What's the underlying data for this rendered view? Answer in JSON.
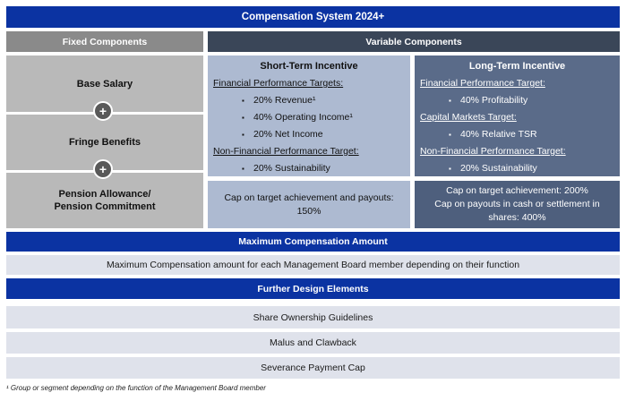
{
  "colors": {
    "brand_blue": "#0b33a2",
    "dark_navy_header": "#3a4658",
    "gray_header": "#8a8a8a",
    "gray_box": "#b9b9b9",
    "sti_light_blue": "#adbad1",
    "lti_slate_blue": "#5a6b89",
    "lti_cap_blue": "#4e5f7d",
    "light_row": "#dfe2eb",
    "plus_circle": "#595959"
  },
  "icons": {
    "plus": "+",
    "bullet": "▪"
  },
  "title_bar": {
    "label": "Compensation System 2024+"
  },
  "column_headers": {
    "fixed": "Fixed Components",
    "variable": "Variable Components"
  },
  "fixed_components": {
    "items": [
      "Base Salary",
      "Fringe Benefits",
      "Pension Allowance/\nPension Commitment"
    ]
  },
  "short_term_incentive": {
    "title": "Short-Term Incentive",
    "sections": [
      {
        "heading": "Financial Performance Targets:",
        "items": [
          "20% Revenue¹",
          "40% Operating Income¹",
          "20% Net Income"
        ]
      },
      {
        "heading": "Non-Financial Performance Target:",
        "items": [
          "20% Sustainability"
        ]
      }
    ],
    "cap": "Cap on target achievement and payouts: 150%"
  },
  "long_term_incentive": {
    "title": "Long-Term Incentive",
    "sections": [
      {
        "heading": "Financial Performance Target:",
        "items": [
          "40% Profitability"
        ]
      },
      {
        "heading": "Capital Markets Target:",
        "items": [
          "40% Relative TSR"
        ]
      },
      {
        "heading": "Non-Financial Performance Target:",
        "items": [
          "20% Sustainability"
        ]
      }
    ],
    "cap": "Cap on target achievement: 200%\nCap on payouts in cash or settlement in shares: 400%"
  },
  "maximum_compensation": {
    "header": "Maximum Compensation Amount",
    "body": "Maximum Compensation amount for each Management Board member depending on their function"
  },
  "further_design_elements": {
    "header": "Further Design Elements",
    "items": [
      "Share Ownership Guidelines",
      "Malus and Clawback",
      "Severance Payment Cap"
    ]
  },
  "footnote": "¹ Group or segment depending on the function of the Management Board member"
}
